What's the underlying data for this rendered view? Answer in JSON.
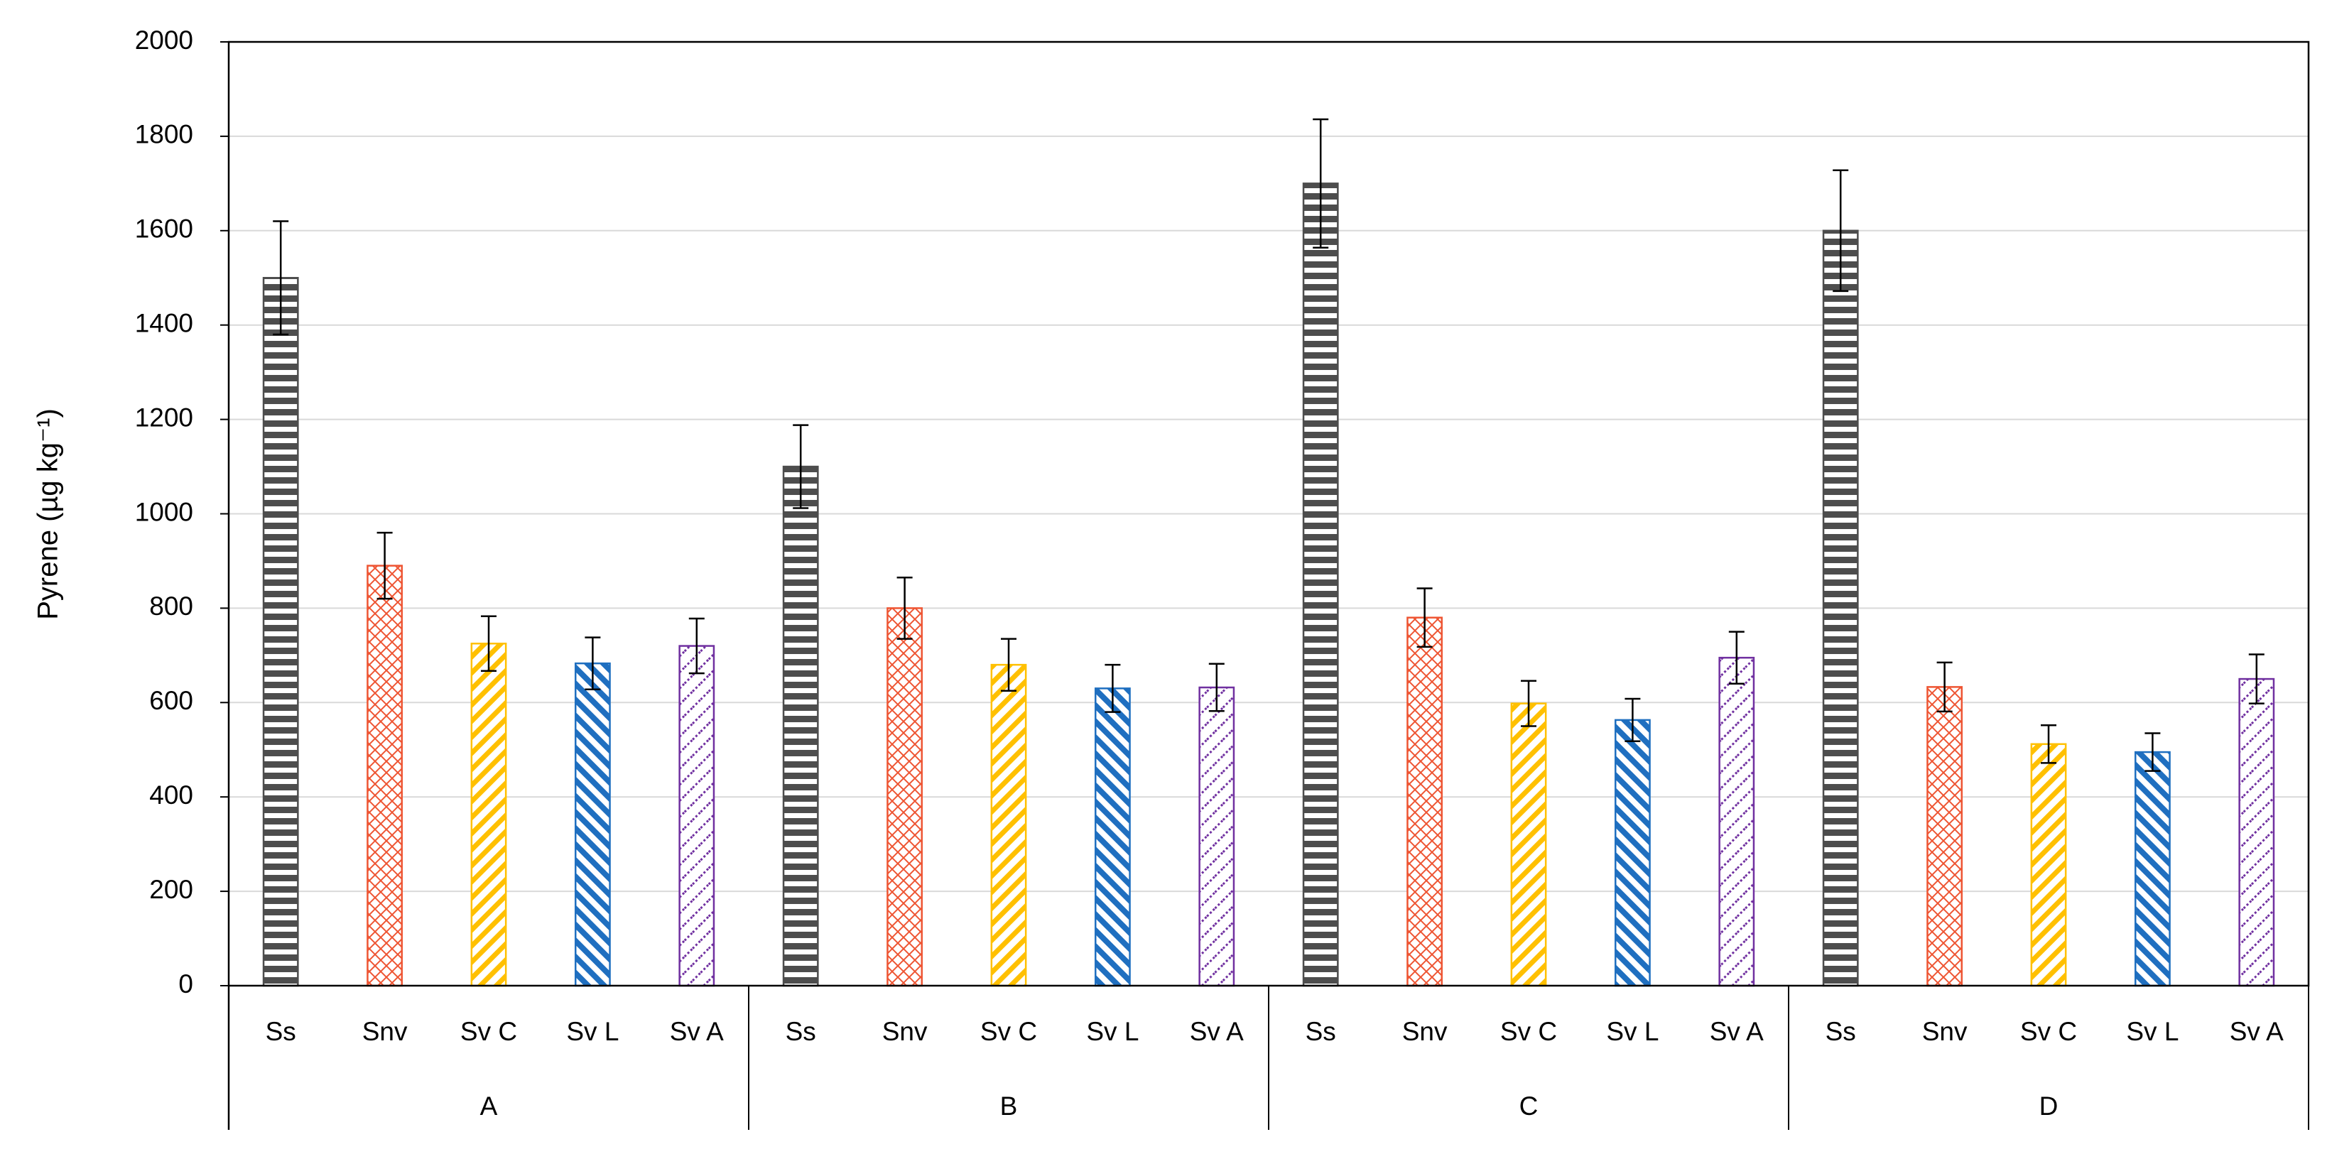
{
  "chart_data": {
    "type": "grouped-bar",
    "y_label": "Pyrene (µg kg⁻¹)",
    "ylim": [
      0,
      2000
    ],
    "yticks": [
      0,
      200,
      400,
      600,
      800,
      1000,
      1200,
      1400,
      1600,
      1800,
      2000
    ],
    "grid": true,
    "colors": [
      "#4d4d4d",
      "#ee5533",
      "#ffc000",
      "#1f6fc0",
      "#7030a0"
    ],
    "groups": [
      {
        "name": "A",
        "categories": [
          "Ss",
          "Snv",
          "Sv C",
          "Sv L",
          "Sv A"
        ],
        "values": [
          1500,
          890,
          725,
          683,
          720
        ],
        "errors": [
          120,
          70,
          58,
          55,
          58
        ]
      },
      {
        "name": "B",
        "categories": [
          "Ss",
          "Snv",
          "Sv C",
          "Sv L",
          "Sv A"
        ],
        "values": [
          1100,
          800,
          680,
          630,
          632
        ],
        "errors": [
          88,
          65,
          55,
          50,
          50
        ]
      },
      {
        "name": "C",
        "categories": [
          "Ss",
          "Snv",
          "Sv C",
          "Sv L",
          "Sv A"
        ],
        "values": [
          1700,
          780,
          598,
          563,
          695
        ],
        "errors": [
          136,
          62,
          48,
          45,
          55
        ]
      },
      {
        "name": "D",
        "categories": [
          "Ss",
          "Snv",
          "Sv C",
          "Sv L",
          "Sv A"
        ],
        "values": [
          1600,
          633,
          512,
          495,
          650
        ],
        "errors": [
          128,
          52,
          40,
          40,
          52
        ]
      }
    ]
  }
}
